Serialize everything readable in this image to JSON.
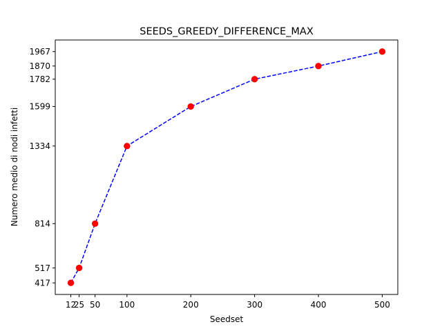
{
  "chart_data": {
    "type": "line",
    "title": "SEEDS_GREEDY_DIFFERENCE_MAX",
    "xlabel": "Seedset",
    "ylabel": "Numero medio di nodi infetti",
    "x": [
      12,
      25,
      50,
      100,
      200,
      300,
      400,
      500
    ],
    "series": [
      {
        "values": [
          417,
          517,
          814,
          1334,
          1599,
          1782,
          1870,
          1967
        ],
        "line_color": "#0000ff",
        "line_style": "dashed",
        "marker_color": "#ff0000",
        "marker": "circle"
      }
    ],
    "xticks": [
      "12",
      "25",
      "50",
      "100",
      "200",
      "300",
      "400",
      "500"
    ],
    "yticks": [
      "417",
      "517",
      "814",
      "1334",
      "1599",
      "1782",
      "1870",
      "1967"
    ],
    "xlim": [
      -12.4,
      524.4
    ],
    "ylim": [
      339.5,
      2044.5
    ],
    "grid": false,
    "legend": "none"
  }
}
